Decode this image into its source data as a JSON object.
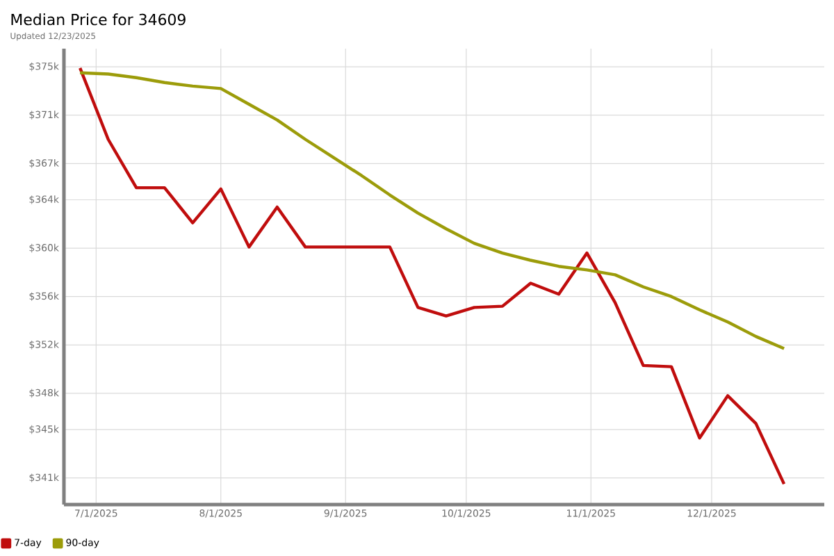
{
  "chart_data": {
    "type": "line",
    "title": "Median Price for 34609",
    "subtitle": "Updated 12/23/2025",
    "x": [
      "2025-06-27",
      "2025-07-04",
      "2025-07-11",
      "2025-07-18",
      "2025-07-25",
      "2025-08-01",
      "2025-08-08",
      "2025-08-15",
      "2025-08-22",
      "2025-08-29",
      "2025-09-05",
      "2025-09-12",
      "2025-09-19",
      "2025-09-26",
      "2025-10-03",
      "2025-10-10",
      "2025-10-17",
      "2025-10-24",
      "2025-10-31",
      "2025-11-07",
      "2025-11-14",
      "2025-11-21",
      "2025-11-28",
      "2025-12-05",
      "2025-12-12",
      "2025-12-19"
    ],
    "series": [
      {
        "name": "7-day",
        "color": "#c00d0d",
        "values": [
          374900,
          369000,
          365000,
          365000,
          362100,
          364900,
          360100,
          363400,
          360100,
          360100,
          360100,
          360100,
          355100,
          354400,
          355100,
          355200,
          357100,
          356200,
          359600,
          355500,
          350300,
          350200,
          344300,
          347800,
          345500,
          340500
        ]
      },
      {
        "name": "90-day",
        "color": "#9c9c0a",
        "values": [
          374500,
          374400,
          374100,
          373700,
          373400,
          373200,
          371900,
          370600,
          369000,
          367500,
          366000,
          364400,
          362900,
          361600,
          360400,
          359600,
          359000,
          358500,
          358200,
          357800,
          356800,
          356000,
          354900,
          353900,
          352700,
          351700
        ]
      }
    ],
    "xlim": [
      "2025-06-23",
      "2025-12-29"
    ],
    "xticks": [
      {
        "value": "2025-07-01",
        "label": "7/1/2025"
      },
      {
        "value": "2025-08-01",
        "label": "8/1/2025"
      },
      {
        "value": "2025-09-01",
        "label": "9/1/2025"
      },
      {
        "value": "2025-10-01",
        "label": "10/1/2025"
      },
      {
        "value": "2025-11-01",
        "label": "11/1/2025"
      },
      {
        "value": "2025-12-01",
        "label": "12/1/2025"
      }
    ],
    "ylim": [
      338800,
      376500
    ],
    "yticks": [
      {
        "value": 341000,
        "label": "$341k"
      },
      {
        "value": 345000,
        "label": "$345k"
      },
      {
        "value": 348000,
        "label": "$348k"
      },
      {
        "value": 352000,
        "label": "$352k"
      },
      {
        "value": 356000,
        "label": "$356k"
      },
      {
        "value": 360000,
        "label": "$360k"
      },
      {
        "value": 364000,
        "label": "$364k"
      },
      {
        "value": 367000,
        "label": "$367k"
      },
      {
        "value": 371000,
        "label": "$371k"
      },
      {
        "value": 375000,
        "label": "$375k"
      }
    ],
    "grid": true,
    "legend": "bottom left",
    "marker": "none",
    "line_style": "solid"
  }
}
